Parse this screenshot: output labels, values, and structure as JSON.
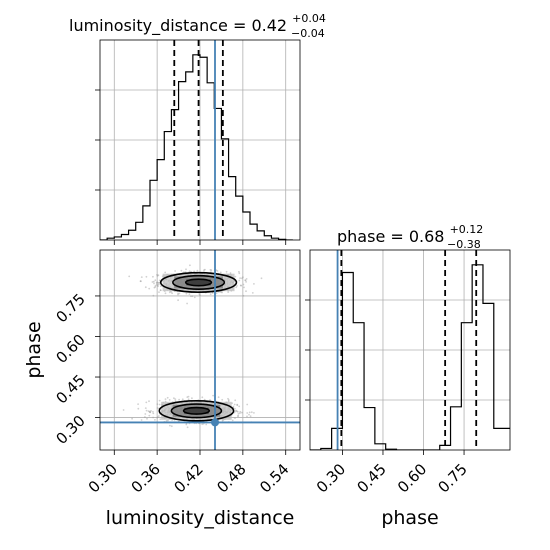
{
  "chart_data": [
    {
      "type": "histogram",
      "panel": "luminosity_distance",
      "title": {
        "prefix": "luminosity_distance = 0.42",
        "upper": "+0.04",
        "lower": "−0.04"
      },
      "xlim": [
        0.28,
        0.56
      ],
      "xticks": [
        0.3,
        0.36,
        0.42,
        0.48,
        0.54
      ],
      "bin_edges": [
        0.28,
        0.29,
        0.3,
        0.31,
        0.32,
        0.33,
        0.34,
        0.35,
        0.36,
        0.37,
        0.38,
        0.39,
        0.4,
        0.41,
        0.42,
        0.43,
        0.44,
        0.45,
        0.46,
        0.47,
        0.48,
        0.49,
        0.5,
        0.51,
        0.52,
        0.53,
        0.54,
        0.55
      ],
      "counts": [
        0,
        3,
        5,
        9,
        16,
        29,
        56,
        98,
        132,
        178,
        214,
        260,
        276,
        304,
        300,
        258,
        216,
        166,
        104,
        72,
        46,
        26,
        15,
        7,
        3,
        1,
        0
      ],
      "quantiles": [
        0.384,
        0.418,
        0.452
      ],
      "truth": 0.441,
      "color": "#000000",
      "truth_color": "#4682b4"
    },
    {
      "type": "scatter+contour",
      "panel": "luminosity_distance vs phase",
      "xlabel": "luminosity_distance",
      "ylabel": "phase",
      "xlim": [
        0.28,
        0.56
      ],
      "ylim": [
        0.18,
        0.92
      ],
      "xticks": [
        0.3,
        0.36,
        0.42,
        0.48,
        0.54
      ],
      "yticks": [
        0.3,
        0.45,
        0.6,
        0.75
      ],
      "modes": [
        {
          "center_x": 0.418,
          "center_y": 0.8,
          "contour_levels": [
            {
              "half_width_x": 0.018,
              "half_width_y": 0.012
            },
            {
              "half_width_x": 0.036,
              "half_width_y": 0.025
            },
            {
              "half_width_x": 0.053,
              "half_width_y": 0.036
            }
          ]
        },
        {
          "center_x": 0.415,
          "center_y": 0.325,
          "contour_levels": [
            {
              "half_width_x": 0.018,
              "half_width_y": 0.012
            },
            {
              "half_width_x": 0.035,
              "half_width_y": 0.025
            },
            {
              "half_width_x": 0.052,
              "half_width_y": 0.037
            }
          ]
        }
      ],
      "truth": {
        "x": 0.441,
        "y": 0.282
      },
      "truth_color": "#4682b4"
    },
    {
      "type": "histogram",
      "panel": "phase",
      "title": {
        "prefix": "phase = 0.68",
        "upper": "+0.12",
        "lower": "−0.38"
      },
      "xlabel": "phase",
      "xlim": [
        0.18,
        0.92
      ],
      "xticks": [
        0.3,
        0.45,
        0.6,
        0.75
      ],
      "bin_edges": [
        0.18,
        0.22,
        0.26,
        0.3,
        0.34,
        0.38,
        0.42,
        0.46,
        0.5,
        0.54,
        0.58,
        0.62,
        0.66,
        0.7,
        0.74,
        0.78,
        0.82,
        0.86,
        0.9,
        0.92
      ],
      "counts": [
        0,
        2,
        28,
        230,
        165,
        55,
        8,
        1,
        0,
        0,
        0,
        0,
        6,
        56,
        165,
        240,
        190,
        28,
        28
      ],
      "quantiles": [
        0.296,
        0.68,
        0.795
      ],
      "truth": 0.282,
      "color": "#000000",
      "truth_color": "#4682b4"
    }
  ]
}
